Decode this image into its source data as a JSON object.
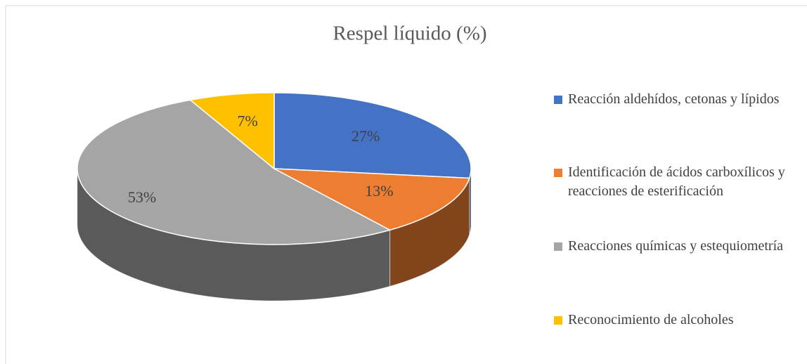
{
  "chart_data": {
    "type": "pie",
    "title": "Respel líquido (%)",
    "categories": [
      "Reacción aldehídos, cetonas y lípidos",
      "Identificación de ácidos carboxílicos y reacciones de esterificación",
      "Reacciones químicas y estequiometría",
      "Reconocimiento de  alcoholes"
    ],
    "values": [
      27,
      13,
      53,
      7
    ],
    "value_labels": [
      "27%",
      "13%",
      "53%",
      "7%"
    ],
    "colors": [
      "#4472c4",
      "#ed7d31",
      "#a5a5a5",
      "#ffc000"
    ],
    "legend": "right"
  }
}
